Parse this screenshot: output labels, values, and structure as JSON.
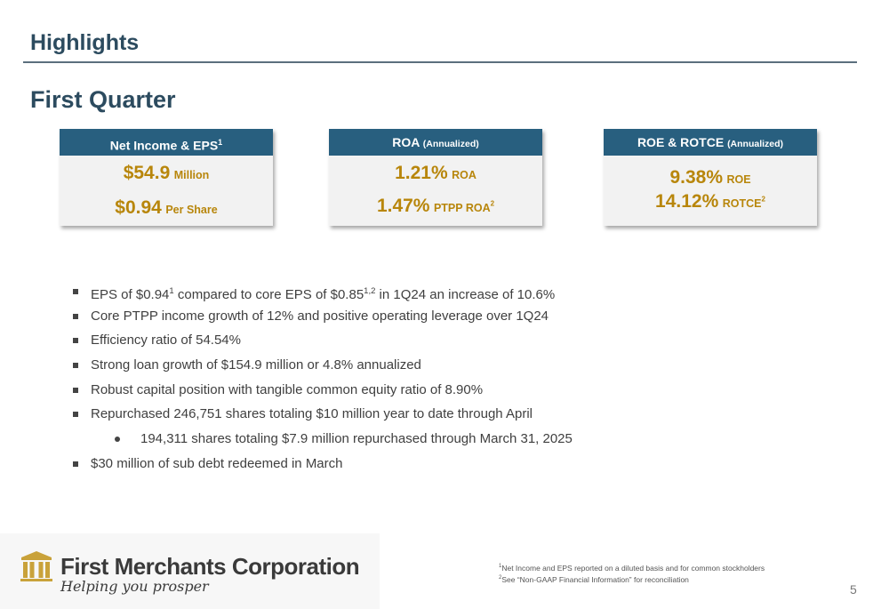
{
  "slide": {
    "title": "Highlights",
    "subtitle": "First Quarter",
    "page_number": "5"
  },
  "cards": [
    {
      "header": "Net Income & EPS",
      "header_sup": "1",
      "header_note": "",
      "line1_value": "$54.9",
      "line1_unit": "Million",
      "line1_sup": "",
      "line2_value": "$0.94",
      "line2_unit": "Per Share",
      "line2_sup": ""
    },
    {
      "header": "ROA",
      "header_sup": "",
      "header_note": "(Annualized)",
      "line1_value": "1.21%",
      "line1_unit": "ROA",
      "line1_sup": "",
      "line2_value": "1.47%",
      "line2_unit": "PTPP ROA",
      "line2_sup": "2"
    },
    {
      "header": "ROE & ROTCE",
      "header_sup": "",
      "header_note": "(Annualized)",
      "line1_value": "9.38%",
      "line1_unit": "ROE",
      "line1_sup": "",
      "line2_value": "14.12%",
      "line2_unit": "ROTCE",
      "line2_sup": "2"
    }
  ],
  "bullets": [
    {
      "a": "EPS of $0.94",
      "s1": "1",
      "b": " compared to core EPS of $0.85",
      "s2": "1,2",
      "c": " in 1Q24 an increase of 10.6%"
    },
    {
      "text": "Core PTPP income growth of 12% and positive operating leverage over 1Q24"
    },
    {
      "text": "Efficiency ratio of 54.54%"
    },
    {
      "text": "Strong loan growth of $154.9 million or 4.8% annualized"
    },
    {
      "text": "Robust capital position with tangible common equity ratio of 8.90%"
    },
    {
      "text": "Repurchased 246,751 shares totaling $10 million year to date through April"
    },
    {
      "text": "194,311 shares totaling $7.9 million repurchased through March 31, 2025"
    },
    {
      "text": "$30 million of sub debt redeemed in March"
    }
  ],
  "footnotes": [
    {
      "num": "1",
      "text": "Net Income and EPS reported on a diluted basis and for common stockholders"
    },
    {
      "num": "2",
      "text": "See “Non-GAAP Financial Information” for reconciliation"
    }
  ],
  "logo": {
    "company": "First Merchants Corporation",
    "tagline": "Helping you prosper",
    "icon": "building-columns-icon",
    "color": "#c9a23a"
  }
}
